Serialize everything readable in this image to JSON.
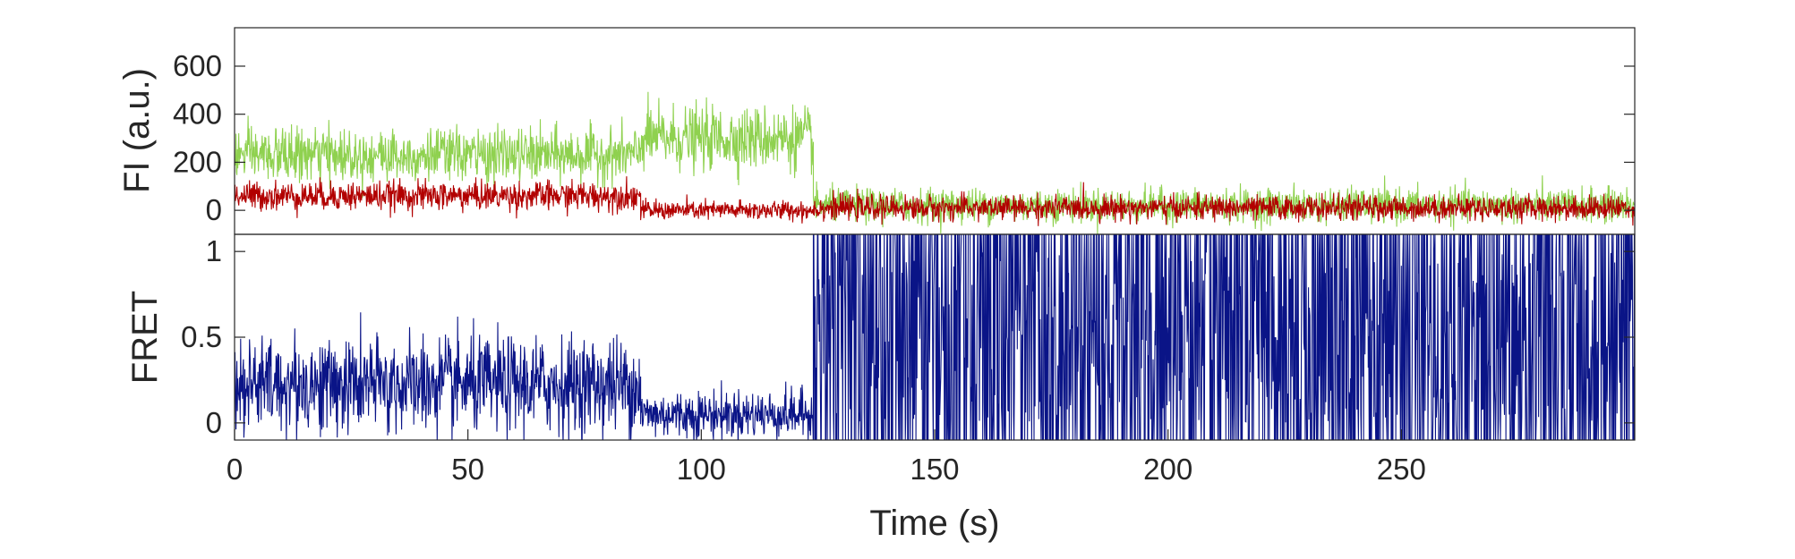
{
  "chart_data": [
    {
      "type": "line",
      "panel": "top",
      "title": "",
      "xlabel": "",
      "ylabel": "FI (a.u.)",
      "xlim": [
        0,
        300
      ],
      "ylim": [
        -100,
        760
      ],
      "yticks": [
        0,
        200,
        400,
        600
      ],
      "ytick_labels": [
        "0",
        "200",
        "400",
        "600"
      ],
      "grid": false,
      "series": [
        {
          "color": "#8fd14f",
          "segments": [
            {
              "t0": 0,
              "t1": 87,
              "mean": 230,
              "noise": 55
            },
            {
              "t0": 87,
              "t1": 124,
              "mean": 300,
              "noise": 65
            },
            {
              "t0": 124,
              "t1": 300,
              "mean": 20,
              "noise": 35
            }
          ]
        },
        {
          "color": "#b20000",
          "segments": [
            {
              "t0": 0,
              "t1": 87,
              "mean": 60,
              "noise": 30
            },
            {
              "t0": 87,
              "t1": 124,
              "mean": 0,
              "noise": 20
            },
            {
              "t0": 124,
              "t1": 300,
              "mean": 10,
              "noise": 25
            }
          ]
        }
      ]
    },
    {
      "type": "line",
      "panel": "bottom",
      "title": "",
      "xlabel": "Time (s)",
      "ylabel": "FRET",
      "xlim": [
        0,
        300
      ],
      "ylim": [
        -0.1,
        1.1
      ],
      "xticks": [
        0,
        50,
        100,
        150,
        200,
        250
      ],
      "xtick_labels": [
        "0",
        "50",
        "100",
        "150",
        "200",
        "250"
      ],
      "yticks": [
        0,
        0.5,
        1
      ],
      "ytick_labels": [
        "0",
        "0.5",
        "1"
      ],
      "grid": false,
      "series": [
        {
          "color": "#0a1487",
          "segments": [
            {
              "t0": 0,
              "t1": 87,
              "mean": 0.22,
              "noise": 0.14
            },
            {
              "t0": 87,
              "t1": 124,
              "mean": 0.05,
              "noise": 0.07
            },
            {
              "t0": 124,
              "t1": 300,
              "mean": 0.45,
              "noise": 0.6
            }
          ]
        }
      ]
    }
  ]
}
